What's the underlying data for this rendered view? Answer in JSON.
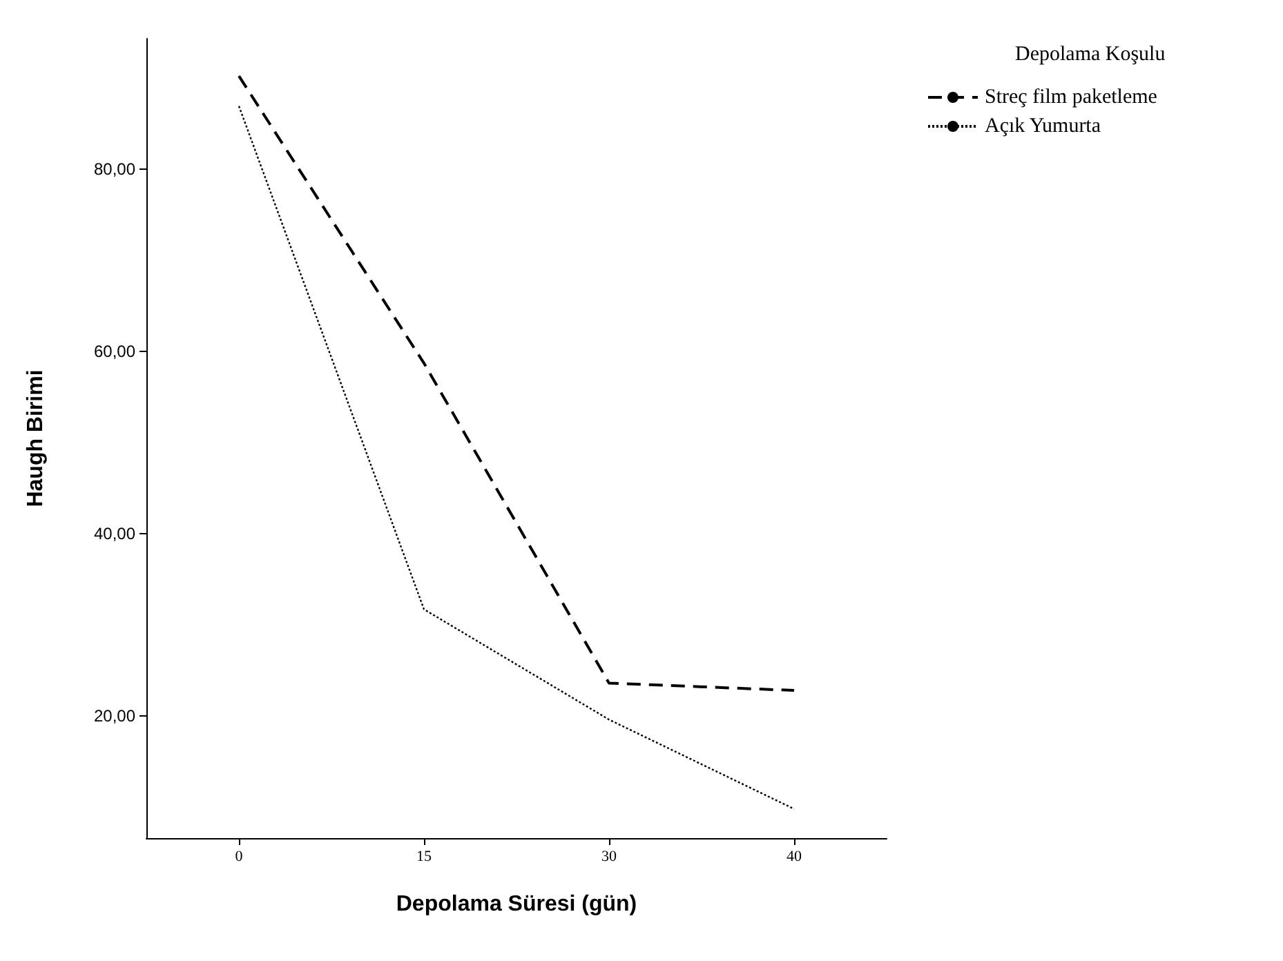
{
  "chart_data": {
    "type": "line",
    "xlabel": "Depolama Süresi (gün)",
    "ylabel": "Haugh Birimi",
    "legend_title": "Depolama Koşulu",
    "categories": [
      "0",
      "15",
      "30",
      "40"
    ],
    "series": [
      {
        "name": "Streç film paketleme",
        "color": "#000000",
        "line_style": "dashed",
        "values": [
          90.2,
          58.7,
          23.6,
          22.8
        ]
      },
      {
        "name": "Açık Yumurta",
        "color": "#000000",
        "line_style": "dotted",
        "values": [
          86.9,
          31.7,
          19.6,
          9.8
        ]
      }
    ],
    "ylim": [
      6.6,
      94.3
    ],
    "yticks": [
      {
        "value": 20,
        "label": "20,00"
      },
      {
        "value": 40,
        "label": "40,00"
      },
      {
        "value": 60,
        "label": "60,00"
      },
      {
        "value": 80,
        "label": "80,00"
      }
    ],
    "grid": false,
    "legend": "top right",
    "marker": "none"
  }
}
